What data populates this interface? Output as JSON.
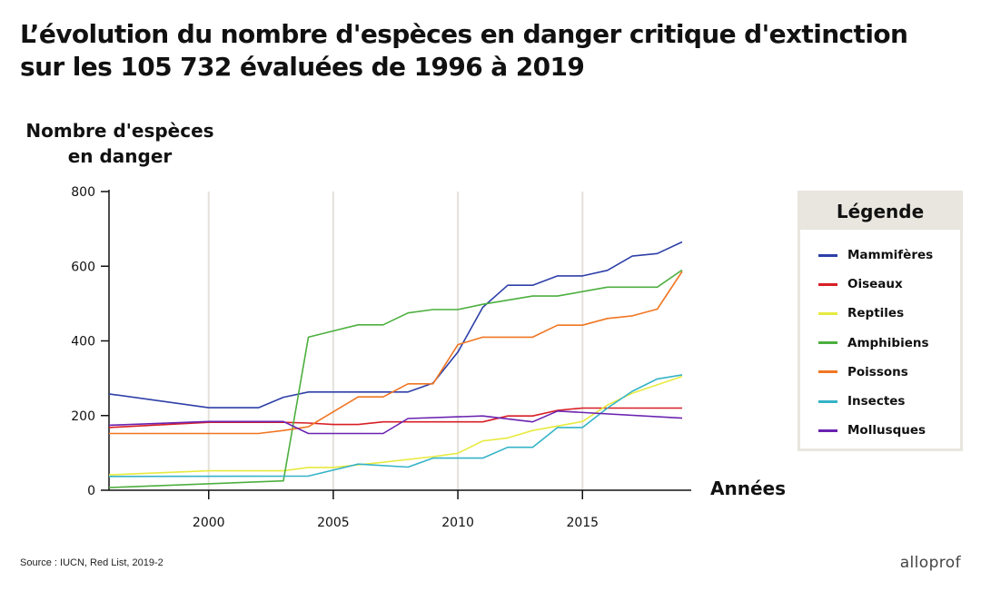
{
  "chart_data": {
    "type": "line",
    "title": [
      "L’évolution du nombre d'espèces en danger critique d'extinction",
      "sur les 105 732 évaluées de 1996 à 2019"
    ],
    "ylabel": [
      "Nombre d'espèces",
      "en danger"
    ],
    "xlabel": "Années",
    "xlim": [
      1996,
      2019
    ],
    "ylim": [
      0,
      800
    ],
    "xticks": [
      2000,
      2005,
      2010,
      2015
    ],
    "yticks": [
      0,
      200,
      400,
      600,
      800
    ],
    "grid": "vertical",
    "legend_title": "Légende",
    "legend_position": "right",
    "series": [
      {
        "name": "Mammifères",
        "color": "#2e3fa8",
        "points": [
          [
            1996,
            258
          ],
          [
            2000,
            221
          ],
          [
            2002,
            221
          ],
          [
            2003,
            249
          ],
          [
            2004,
            263
          ],
          [
            2008,
            263
          ],
          [
            2009,
            287
          ],
          [
            2010,
            370
          ],
          [
            2011,
            490
          ],
          [
            2012,
            549
          ],
          [
            2013,
            549
          ],
          [
            2014,
            574
          ],
          [
            2015,
            574
          ],
          [
            2016,
            589
          ],
          [
            2017,
            627
          ],
          [
            2018,
            634
          ],
          [
            2019,
            665
          ]
        ]
      },
      {
        "name": "Oiseaux",
        "color": "#d81f26",
        "points": [
          [
            1996,
            168
          ],
          [
            2000,
            182
          ],
          [
            2003,
            182
          ],
          [
            2004,
            180
          ],
          [
            2005,
            176
          ],
          [
            2006,
            176
          ],
          [
            2007,
            183
          ],
          [
            2011,
            183
          ],
          [
            2012,
            199
          ],
          [
            2013,
            199
          ],
          [
            2014,
            214
          ],
          [
            2015,
            220
          ],
          [
            2019,
            220
          ]
        ]
      },
      {
        "name": "Reptiles",
        "color": "#e8ea3f",
        "points": [
          [
            1996,
            41
          ],
          [
            2000,
            52
          ],
          [
            2003,
            52
          ],
          [
            2004,
            61
          ],
          [
            2005,
            61
          ],
          [
            2007,
            75
          ],
          [
            2009,
            90
          ],
          [
            2010,
            99
          ],
          [
            2011,
            132
          ],
          [
            2012,
            140
          ],
          [
            2013,
            160
          ],
          [
            2014,
            172
          ],
          [
            2015,
            184
          ],
          [
            2016,
            228
          ],
          [
            2017,
            260
          ],
          [
            2019,
            305
          ]
        ]
      },
      {
        "name": "Amphibiens",
        "color": "#4caf3e",
        "points": [
          [
            1996,
            7
          ],
          [
            2003,
            25
          ],
          [
            2004,
            410
          ],
          [
            2006,
            443
          ],
          [
            2007,
            443
          ],
          [
            2008,
            475
          ],
          [
            2009,
            484
          ],
          [
            2010,
            484
          ],
          [
            2011,
            498
          ],
          [
            2013,
            520
          ],
          [
            2014,
            520
          ],
          [
            2016,
            544
          ],
          [
            2018,
            544
          ],
          [
            2019,
            590
          ]
        ]
      },
      {
        "name": "Poissons",
        "color": "#f07622",
        "points": [
          [
            1996,
            152
          ],
          [
            2002,
            152
          ],
          [
            2003,
            160
          ],
          [
            2004,
            170
          ],
          [
            2006,
            250
          ],
          [
            2007,
            250
          ],
          [
            2008,
            285
          ],
          [
            2009,
            285
          ],
          [
            2010,
            390
          ],
          [
            2011,
            410
          ],
          [
            2013,
            410
          ],
          [
            2014,
            442
          ],
          [
            2015,
            442
          ],
          [
            2016,
            460
          ],
          [
            2017,
            467
          ],
          [
            2018,
            485
          ],
          [
            2019,
            586
          ]
        ]
      },
      {
        "name": "Insectes",
        "color": "#35b3c8",
        "points": [
          [
            1996,
            37
          ],
          [
            2004,
            38
          ],
          [
            2006,
            70
          ],
          [
            2008,
            62
          ],
          [
            2009,
            86
          ],
          [
            2011,
            86
          ],
          [
            2012,
            115
          ],
          [
            2013,
            115
          ],
          [
            2014,
            168
          ],
          [
            2015,
            168
          ],
          [
            2016,
            220
          ],
          [
            2017,
            265
          ],
          [
            2018,
            298
          ],
          [
            2019,
            309
          ]
        ]
      },
      {
        "name": "Mollusques",
        "color": "#6a23b0",
        "points": [
          [
            1996,
            174
          ],
          [
            2000,
            184
          ],
          [
            2003,
            184
          ],
          [
            2004,
            152
          ],
          [
            2007,
            152
          ],
          [
            2008,
            192
          ],
          [
            2011,
            199
          ],
          [
            2013,
            183
          ],
          [
            2014,
            212
          ],
          [
            2019,
            193
          ]
        ]
      }
    ]
  },
  "footer": {
    "source": "Source : IUCN, Red List, 2019-2",
    "brand": "alloprof"
  }
}
